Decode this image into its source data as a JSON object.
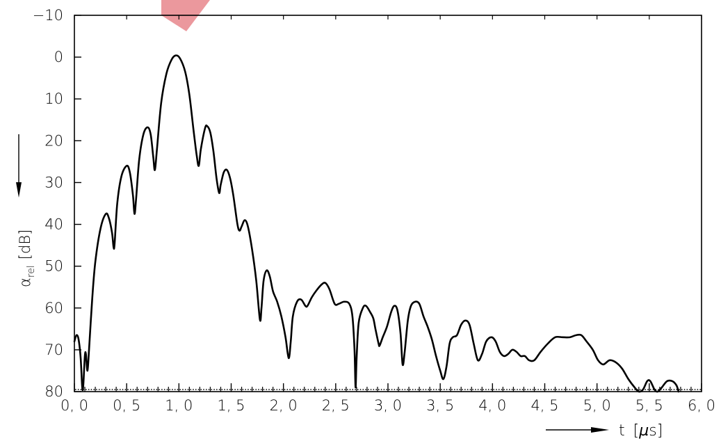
{
  "chart_data": {
    "type": "line",
    "xlabel": "t [µs]",
    "xlabel_parts": {
      "symbol": "t",
      "unit": "µs",
      "unit_prefix": "µ",
      "unit_base": "s"
    },
    "ylabel": "αrel [dB]",
    "ylabel_parts": {
      "symbol": "α",
      "subscript": "rel",
      "unit": "dB"
    },
    "x_ticks": [
      "0, 0",
      "0, 5",
      "1, 0",
      "1, 5",
      "2, 0",
      "2, 5",
      "3, 0",
      "3, 5",
      "4, 0",
      "4, 5",
      "5, 0",
      "5, 5",
      "6, 0"
    ],
    "y_ticks": [
      "−10",
      "0",
      "10",
      "20",
      "30",
      "40",
      "50",
      "60",
      "70",
      "80"
    ],
    "xlim": [
      0.0,
      6.0
    ],
    "ylim": [
      -10,
      80
    ],
    "y_inverted": true,
    "x_minor_step": 0.1,
    "grid": false,
    "colors": {
      "line": "#000000",
      "axes": "#000000",
      "watermark": "#e8868c"
    },
    "series": [
      {
        "values": [
          [
            0.0,
            68.0
          ],
          [
            0.02,
            66.5
          ],
          [
            0.04,
            67.5
          ],
          [
            0.06,
            72.0
          ],
          [
            0.075,
            79.0
          ],
          [
            0.085,
            78.5
          ],
          [
            0.1,
            71.5
          ],
          [
            0.11,
            71.0
          ],
          [
            0.125,
            75.0
          ],
          [
            0.14,
            70.0
          ],
          [
            0.17,
            58.0
          ],
          [
            0.2,
            49.0
          ],
          [
            0.25,
            41.0
          ],
          [
            0.3,
            37.5
          ],
          [
            0.33,
            38.5
          ],
          [
            0.36,
            42.0
          ],
          [
            0.375,
            45.5
          ],
          [
            0.385,
            44.5
          ],
          [
            0.41,
            35.0
          ],
          [
            0.45,
            28.5
          ],
          [
            0.5,
            26.0
          ],
          [
            0.53,
            27.5
          ],
          [
            0.56,
            33.0
          ],
          [
            0.575,
            37.5
          ],
          [
            0.59,
            34.0
          ],
          [
            0.62,
            24.5
          ],
          [
            0.66,
            18.5
          ],
          [
            0.7,
            16.8
          ],
          [
            0.73,
            18.5
          ],
          [
            0.755,
            24.0
          ],
          [
            0.77,
            27.0
          ],
          [
            0.79,
            22.0
          ],
          [
            0.83,
            11.0
          ],
          [
            0.88,
            4.0
          ],
          [
            0.93,
            0.6
          ],
          [
            0.97,
            -0.4
          ],
          [
            1.01,
            0.3
          ],
          [
            1.06,
            3.5
          ],
          [
            1.1,
            9.0
          ],
          [
            1.14,
            17.5
          ],
          [
            1.17,
            23.5
          ],
          [
            1.19,
            26.0
          ],
          [
            1.21,
            22.0
          ],
          [
            1.25,
            17.0
          ],
          [
            1.27,
            16.5
          ],
          [
            1.3,
            18.0
          ],
          [
            1.33,
            22.5
          ],
          [
            1.36,
            29.0
          ],
          [
            1.385,
            32.5
          ],
          [
            1.4,
            30.5
          ],
          [
            1.43,
            27.5
          ],
          [
            1.46,
            27.0
          ],
          [
            1.49,
            29.0
          ],
          [
            1.52,
            33.0
          ],
          [
            1.56,
            40.0
          ],
          [
            1.58,
            41.5
          ],
          [
            1.6,
            40.5
          ],
          [
            1.63,
            39.0
          ],
          [
            1.66,
            40.5
          ],
          [
            1.7,
            46.0
          ],
          [
            1.74,
            53.5
          ],
          [
            1.775,
            62.8
          ],
          [
            1.79,
            60.0
          ],
          [
            1.81,
            53.5
          ],
          [
            1.84,
            51.0
          ],
          [
            1.87,
            52.5
          ],
          [
            1.9,
            56.0
          ],
          [
            1.94,
            58.5
          ],
          [
            1.98,
            62.0
          ],
          [
            2.02,
            67.0
          ],
          [
            2.05,
            72.0
          ],
          [
            2.07,
            68.0
          ],
          [
            2.09,
            62.0
          ],
          [
            2.13,
            58.5
          ],
          [
            2.17,
            58.0
          ],
          [
            2.21,
            59.5
          ],
          [
            2.23,
            59.5
          ],
          [
            2.27,
            57.5
          ],
          [
            2.31,
            56.0
          ],
          [
            2.36,
            54.5
          ],
          [
            2.4,
            54.0
          ],
          [
            2.44,
            55.5
          ],
          [
            2.49,
            59.0
          ],
          [
            2.53,
            59.0
          ],
          [
            2.58,
            58.5
          ],
          [
            2.63,
            59.0
          ],
          [
            2.66,
            62.0
          ],
          [
            2.68,
            70.0
          ],
          [
            2.69,
            79.0
          ],
          [
            2.7,
            72.0
          ],
          [
            2.72,
            63.5
          ],
          [
            2.76,
            60.0
          ],
          [
            2.79,
            59.5
          ],
          [
            2.83,
            61.0
          ],
          [
            2.86,
            62.5
          ],
          [
            2.88,
            65.0
          ],
          [
            2.91,
            68.5
          ],
          [
            2.92,
            69.0
          ],
          [
            2.95,
            67.0
          ],
          [
            2.99,
            64.5
          ],
          [
            3.03,
            61.0
          ],
          [
            3.06,
            59.5
          ],
          [
            3.09,
            60.5
          ],
          [
            3.12,
            66.0
          ],
          [
            3.14,
            73.5
          ],
          [
            3.16,
            70.5
          ],
          [
            3.19,
            63.0
          ],
          [
            3.22,
            59.5
          ],
          [
            3.26,
            58.5
          ],
          [
            3.3,
            59.0
          ],
          [
            3.34,
            62.0
          ],
          [
            3.38,
            64.5
          ],
          [
            3.42,
            67.5
          ],
          [
            3.46,
            71.5
          ],
          [
            3.5,
            75.0
          ],
          [
            3.53,
            77.0
          ],
          [
            3.56,
            74.0
          ],
          [
            3.59,
            68.5
          ],
          [
            3.62,
            67.0
          ],
          [
            3.66,
            66.5
          ],
          [
            3.7,
            64.0
          ],
          [
            3.74,
            63.0
          ],
          [
            3.78,
            64.0
          ],
          [
            3.82,
            68.5
          ],
          [
            3.86,
            72.5
          ],
          [
            3.9,
            71.0
          ],
          [
            3.94,
            68.0
          ],
          [
            3.99,
            67.0
          ],
          [
            4.03,
            68.0
          ],
          [
            4.07,
            70.5
          ],
          [
            4.11,
            71.5
          ],
          [
            4.15,
            71.0
          ],
          [
            4.19,
            70.0
          ],
          [
            4.23,
            70.5
          ],
          [
            4.27,
            71.5
          ],
          [
            4.31,
            71.5
          ],
          [
            4.35,
            72.5
          ],
          [
            4.4,
            72.5
          ],
          [
            4.46,
            70.5
          ],
          [
            4.53,
            68.5
          ],
          [
            4.6,
            67.0
          ],
          [
            4.67,
            67.0
          ],
          [
            4.74,
            67.0
          ],
          [
            4.8,
            66.5
          ],
          [
            4.85,
            66.5
          ],
          [
            4.9,
            68.0
          ],
          [
            4.96,
            70.0
          ],
          [
            5.01,
            72.5
          ],
          [
            5.06,
            73.5
          ],
          [
            5.12,
            72.5
          ],
          [
            5.18,
            73.0
          ],
          [
            5.24,
            74.5
          ],
          [
            5.3,
            77.0
          ],
          [
            5.36,
            79.0
          ],
          [
            5.4,
            80.0
          ],
          [
            5.44,
            79.5
          ],
          [
            5.48,
            77.5
          ],
          [
            5.51,
            77.5
          ],
          [
            5.55,
            79.5
          ],
          [
            5.58,
            80.0
          ],
          [
            5.62,
            79.0
          ],
          [
            5.67,
            77.5
          ],
          [
            5.72,
            77.5
          ],
          [
            5.76,
            78.5
          ],
          [
            5.78,
            80.0
          ]
        ]
      }
    ]
  }
}
